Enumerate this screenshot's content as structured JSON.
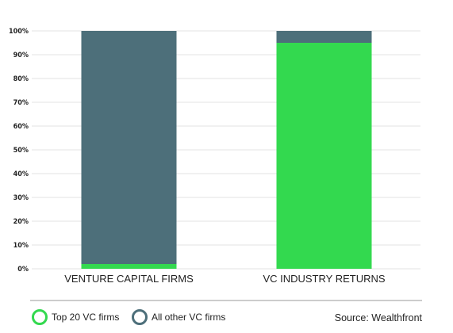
{
  "chart_data": {
    "type": "bar",
    "stacked": true,
    "categories": [
      "VENTURE CAPITAL FIRMS",
      "VC INDUSTRY RETURNS"
    ],
    "series": [
      {
        "name": "Top 20 VC firms",
        "values": [
          2,
          95
        ],
        "color": "#33d94f"
      },
      {
        "name": "All other VC firms",
        "values": [
          98,
          5
        ],
        "color": "#4d6f7a"
      }
    ],
    "ylim": [
      0,
      100
    ],
    "yticks": [
      "0%",
      "10%",
      "20%",
      "30%",
      "40%",
      "50%",
      "60%",
      "70%",
      "80%",
      "90%",
      "100%"
    ],
    "grid": true,
    "legend_position": "bottom-left",
    "source": "Source: Wealthfront"
  }
}
